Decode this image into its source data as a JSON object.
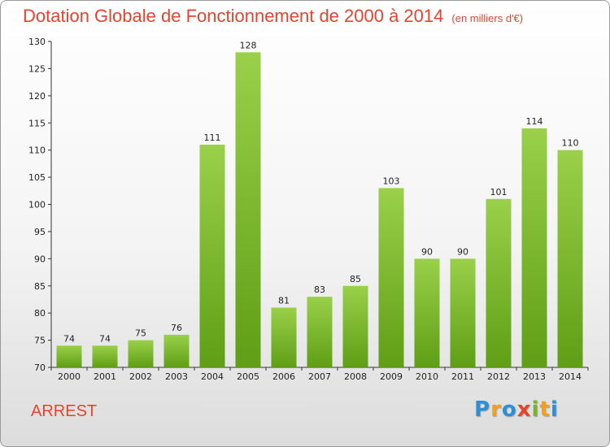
{
  "header": {
    "title": "Dotation Globale de Fonctionnement de 2000 à 2014",
    "subtitle": "(en milliers d'€)"
  },
  "footer": {
    "commune": "ARREST",
    "logo_letters": [
      {
        "ch": "P",
        "color": "#2d8fd6"
      },
      {
        "ch": "r",
        "color": "#f0a020"
      },
      {
        "ch": "o",
        "color": "#2d8fd6"
      },
      {
        "ch": "x",
        "color": "#e8442c"
      },
      {
        "ch": "i",
        "color": "#7ab32e"
      },
      {
        "ch": "t",
        "color": "#f0a020"
      },
      {
        "ch": "i",
        "color": "#2d8fd6"
      }
    ]
  },
  "chart_data": {
    "type": "bar",
    "title": "Dotation Globale de Fonctionnement de 2000 à 2014",
    "subtitle": "(en milliers d'€)",
    "categories": [
      "2000",
      "2001",
      "2002",
      "2003",
      "2004",
      "2005",
      "2006",
      "2007",
      "2008",
      "2009",
      "2010",
      "2011",
      "2012",
      "2013",
      "2014"
    ],
    "values": [
      74,
      74,
      75,
      76,
      111,
      128,
      81,
      83,
      85,
      103,
      90,
      90,
      101,
      114,
      110
    ],
    "ylim": [
      70,
      130
    ],
    "yticks": [
      70,
      75,
      80,
      85,
      90,
      95,
      100,
      105,
      110,
      115,
      120,
      125,
      130
    ],
    "grid": false,
    "bar_color": "#7ab32e"
  }
}
